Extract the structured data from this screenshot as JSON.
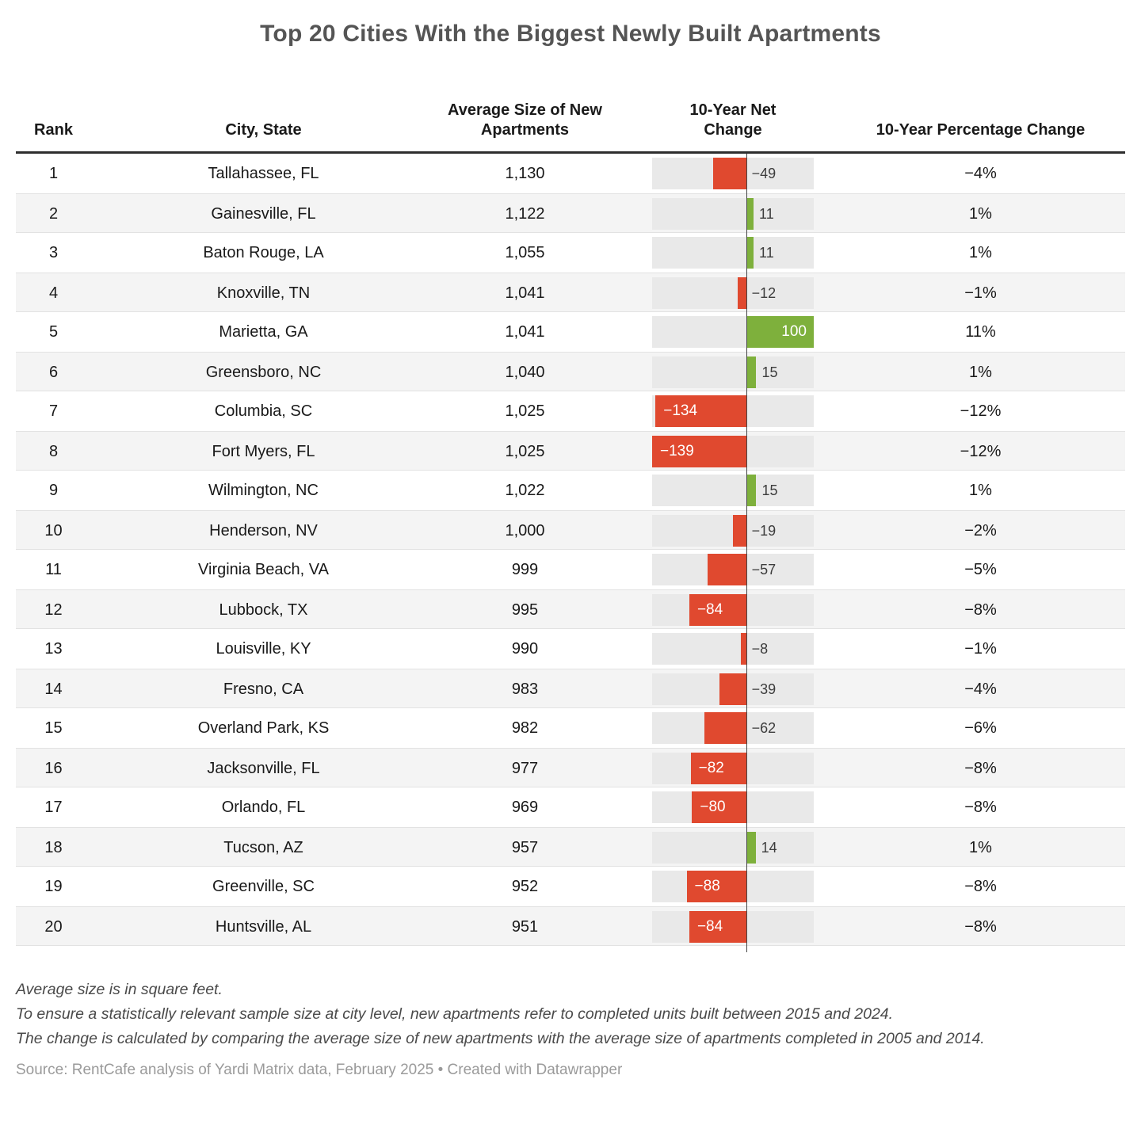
{
  "title": "Top 20 Cities With the Biggest Newly Built Apartments",
  "colors": {
    "negative_bar": "#e0492f",
    "positive_bar": "#7eb03c",
    "bar_track": "#e9e9e9",
    "zero_line": "#454545"
  },
  "chart_data": {
    "type": "table",
    "title": "Top 20 Cities With the Biggest Newly Built Apartments",
    "columns": [
      "Rank",
      "City, State",
      "Average Size of New Apartments",
      "10-Year Net Change",
      "10-Year Percentage Change"
    ],
    "bar_column": "10-Year Net Change",
    "bar_range": [
      -139,
      100
    ],
    "rows": [
      {
        "rank": "1",
        "city": "Tallahassee, FL",
        "size": "1,130",
        "net": -49,
        "net_label": "−49",
        "pct": "−4%"
      },
      {
        "rank": "2",
        "city": "Gainesville, FL",
        "size": "1,122",
        "net": 11,
        "net_label": "11",
        "pct": "1%"
      },
      {
        "rank": "3",
        "city": "Baton Rouge, LA",
        "size": "1,055",
        "net": 11,
        "net_label": "11",
        "pct": "1%"
      },
      {
        "rank": "4",
        "city": "Knoxville, TN",
        "size": "1,041",
        "net": -12,
        "net_label": "−12",
        "pct": "−1%"
      },
      {
        "rank": "5",
        "city": "Marietta, GA",
        "size": "1,041",
        "net": 100,
        "net_label": "100",
        "pct": "11%"
      },
      {
        "rank": "6",
        "city": "Greensboro, NC",
        "size": "1,040",
        "net": 15,
        "net_label": "15",
        "pct": "1%"
      },
      {
        "rank": "7",
        "city": "Columbia, SC",
        "size": "1,025",
        "net": -134,
        "net_label": "−134",
        "pct": "−12%"
      },
      {
        "rank": "8",
        "city": "Fort Myers, FL",
        "size": "1,025",
        "net": -139,
        "net_label": "−139",
        "pct": "−12%"
      },
      {
        "rank": "9",
        "city": "Wilmington, NC",
        "size": "1,022",
        "net": 15,
        "net_label": "15",
        "pct": "1%"
      },
      {
        "rank": "10",
        "city": "Henderson, NV",
        "size": "1,000",
        "net": -19,
        "net_label": "−19",
        "pct": "−2%"
      },
      {
        "rank": "11",
        "city": "Virginia Beach, VA",
        "size": "999",
        "net": -57,
        "net_label": "−57",
        "pct": "−5%"
      },
      {
        "rank": "12",
        "city": "Lubbock, TX",
        "size": "995",
        "net": -84,
        "net_label": "−84",
        "pct": "−8%"
      },
      {
        "rank": "13",
        "city": "Louisville, KY",
        "size": "990",
        "net": -8,
        "net_label": "−8",
        "pct": "−1%"
      },
      {
        "rank": "14",
        "city": "Fresno, CA",
        "size": "983",
        "net": -39,
        "net_label": "−39",
        "pct": "−4%"
      },
      {
        "rank": "15",
        "city": "Overland Park, KS",
        "size": "982",
        "net": -62,
        "net_label": "−62",
        "pct": "−6%"
      },
      {
        "rank": "16",
        "city": "Jacksonville, FL",
        "size": "977",
        "net": -82,
        "net_label": "−82",
        "pct": "−8%"
      },
      {
        "rank": "17",
        "city": "Orlando, FL",
        "size": "969",
        "net": -80,
        "net_label": "−80",
        "pct": "−8%"
      },
      {
        "rank": "18",
        "city": "Tucson, AZ",
        "size": "957",
        "net": 14,
        "net_label": "14",
        "pct": "1%"
      },
      {
        "rank": "19",
        "city": "Greenville, SC",
        "size": "952",
        "net": -88,
        "net_label": "−88",
        "pct": "−8%"
      },
      {
        "rank": "20",
        "city": "Huntsville, AL",
        "size": "951",
        "net": -84,
        "net_label": "−84",
        "pct": "−8%"
      }
    ]
  },
  "notes": [
    "Average size is in square feet.",
    "To ensure a statistically relevant sample size at city level, new apartments refer to completed units built between 2015 and 2024.",
    "The change is calculated by comparing the average size of new apartments with the average size of apartments completed in 2005 and 2014."
  ],
  "source": "Source: RentCafe analysis of Yardi Matrix data, February 2025 • Created with Datawrapper"
}
